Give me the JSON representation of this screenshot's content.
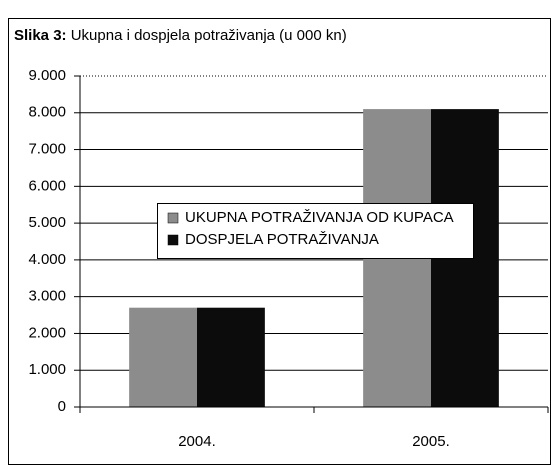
{
  "chart_data": {
    "type": "bar",
    "title_label": "Slika 3:",
    "title": "Ukupna i dospjela potraživanja (u 000 kn)",
    "categories": [
      "2004.",
      "2005."
    ],
    "series": [
      {
        "name": "UKUPNA POTRAŽIVANJA OD KUPACA",
        "color": "#8c8c8c",
        "values": [
          2700,
          8100
        ]
      },
      {
        "name": "DOSPJELA POTRAŽIVANJA",
        "color": "#0c0c0c",
        "values": [
          2700,
          8100
        ]
      }
    ],
    "ylim": [
      0,
      9000
    ],
    "yticks": [
      {
        "value": 0,
        "label": "0"
      },
      {
        "value": 1000,
        "label": "1.000"
      },
      {
        "value": 2000,
        "label": "2.000"
      },
      {
        "value": 3000,
        "label": "3.000"
      },
      {
        "value": 4000,
        "label": "4.000"
      },
      {
        "value": 5000,
        "label": "5.000"
      },
      {
        "value": 6000,
        "label": "6.000"
      },
      {
        "value": 7000,
        "label": "7.000"
      },
      {
        "value": 8000,
        "label": "8.000"
      },
      {
        "value": 9000,
        "label": "9.000"
      }
    ],
    "grid": true,
    "legend": "center"
  }
}
